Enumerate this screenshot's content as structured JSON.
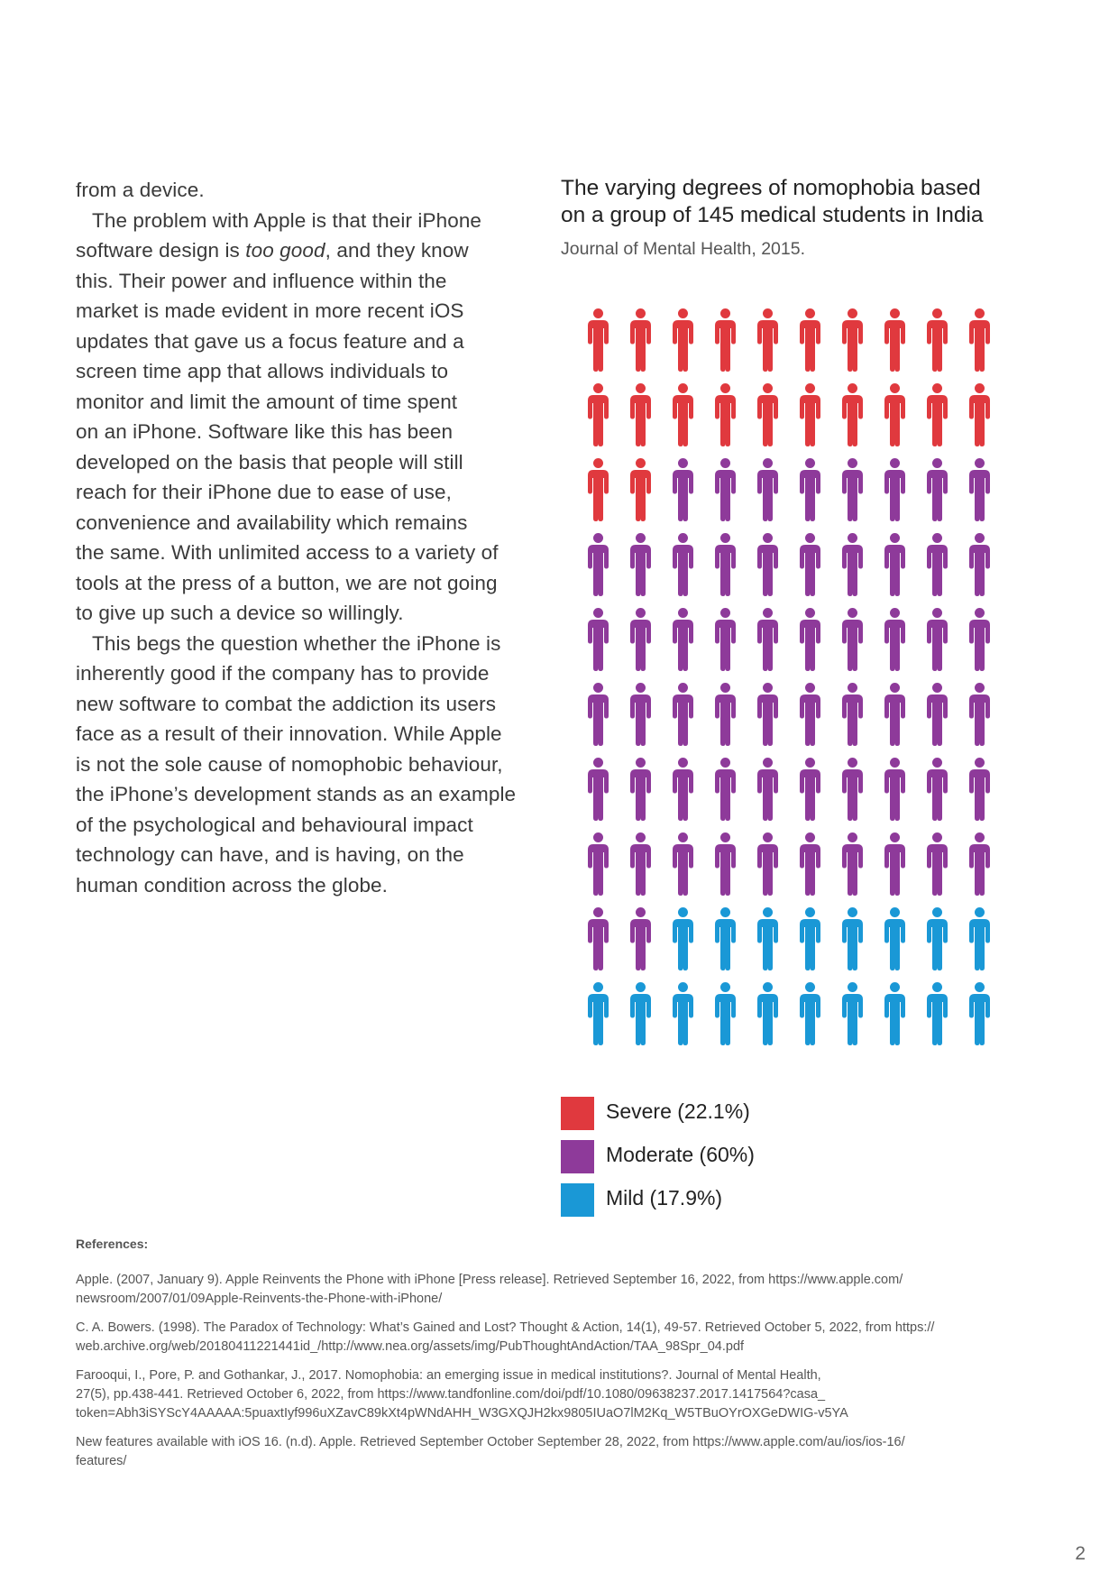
{
  "body_text": {
    "lines": [
      "from a device.",
      "The problem with Apple is that their iPhone",
      "software design is too good, and they know",
      "this. Their power and influence within the",
      "market is made evident in more recent iOS",
      "updates that gave us a focus feature and a",
      "screen time app that allows individuals to",
      "monitor and limit the amount of time spent",
      "on an iPhone. Software like this has been",
      "developed on the basis that people will still",
      "reach for their iPhone due to ease of use,",
      "convenience and availability which remains",
      "the same. With unlimited access to a variety of",
      "tools at the press of a button, we are not going",
      "to give up such a device so willingly.",
      "This begs the question whether the iPhone is",
      "inherently good if the company has to provide",
      "new software to combat the addiction its users",
      "face as a result of their innovation. While Apple",
      "is not the sole cause of nomophobic behaviour,",
      "the iPhone’s development stands as an example",
      "of the psychological and behavioural impact",
      "technology can have, and is having, on the",
      "human condition across the globe."
    ],
    "emphasis_line2_before": "software design is ",
    "emphasis_line2_italic": "too good",
    "emphasis_line2_after": ", and they know"
  },
  "chart": {
    "title_line1": "The varying degrees of nomophobia based",
    "title_line2": "on a group of 145 medical students in India",
    "subtitle": "Journal of Mental Health, 2015."
  },
  "chart_data": {
    "type": "pictogram",
    "title": "The varying degrees of nomophobia based on a group of 145 medical students in India",
    "subtitle": "Journal of Mental Health, 2015.",
    "grid": {
      "rows": 10,
      "columns": 10,
      "icon": "person-icon"
    },
    "series": [
      {
        "name": "Severe (22.1%)",
        "percent": 22.1,
        "icons": 22,
        "color": "#e0393e"
      },
      {
        "name": "Moderate (60%)",
        "percent": 60,
        "icons": 60,
        "color": "#8e3a9a"
      },
      {
        "name": "Mild (17.9%)",
        "percent": 17.9,
        "icons": 18,
        "color": "#1a98d6"
      }
    ],
    "legend_position": "bottom-left"
  },
  "references": {
    "heading": "References:",
    "entries": [
      {
        "line1": "Apple. (2007, January 9). Apple Reinvents the Phone with iPhone [Press release]. Retrieved September 16, 2022, from https://www.apple.com/",
        "line2": "newsroom/2007/01/09Apple-Reinvents-the-Phone-with-iPhone/"
      },
      {
        "line1": " C. A. Bowers. (1998). The Paradox of Technology: What’s Gained and Lost? Thought & Action, 14(1), 49-57. Retrieved October 5, 2022, from https://",
        "line2": "web.archive.org/web/20180411221441id_/http://www.nea.org/assets/img/PubThoughtAndAction/TAA_98Spr_04.pdf"
      },
      {
        "line1": "Farooqui, I., Pore, P. and Gothankar, J., 2017. Nomophobia: an emerging issue in medical institutions?. Journal of Mental Health,",
        "line2": "27(5), pp.438-441. Retrieved October 6, 2022, from https://www.tandfonline.com/doi/pdf/10.1080/09638237.2017.1417564?casa_",
        "line3": "token=Abh3iSYScY4AAAAA:5puaxtIyf996uXZavC89kXt4pWNdAHH_W3GXQJH2kx9805IUaO7lM2Kq_W5TBuOYrOXGeDWIG-v5YA"
      },
      {
        "line1": "New features available with iOS 16. (n.d). Apple. Retrieved September October September 28, 2022, from https://www.apple.com/au/ios/ios-16/",
        "line2": "features/"
      }
    ]
  },
  "page_number": "2"
}
